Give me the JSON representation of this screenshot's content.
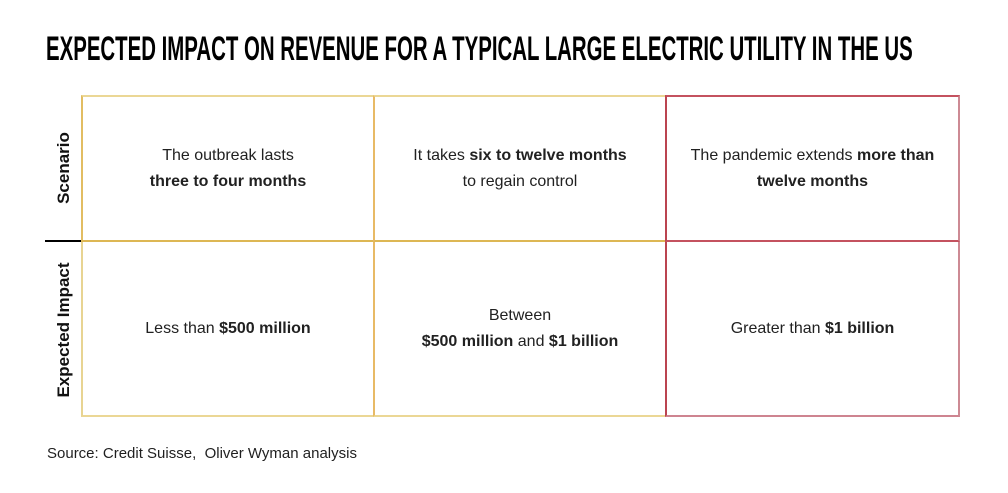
{
  "title": "EXPECTED IMPACT ON REVENUE FOR A TYPICAL LARGE ELECTRIC UTILITY IN THE US",
  "row_labels": {
    "scenario": "Scenario",
    "expected_impact": "Expected Impact"
  },
  "table": {
    "scenario_row": {
      "cell1": {
        "line1": "The outbreak lasts",
        "line2_bold": "three to four months"
      },
      "cell2": {
        "pre": "It takes ",
        "bold": "six to twelve months",
        "line2": "to regain control"
      },
      "cell3": {
        "pre": "The pandemic extends ",
        "bold1": "more than",
        "bold2": "twelve months"
      }
    },
    "impact_row": {
      "cell1": {
        "pre": "Less than ",
        "bold": "$500 million"
      },
      "cell2": {
        "line1": "Between",
        "bold1": "$500 million",
        "mid": " and ",
        "bold2": "$1 billion"
      },
      "cell3": {
        "pre": "Greater than ",
        "bold": "$1 billion"
      }
    }
  },
  "source": "Source: Credit Suisse,  Oliver Wyman analysis",
  "colors": {
    "gold_border": "#E2BD62",
    "red_border": "#C4525F",
    "divider_line": "#000000",
    "text": "#212121",
    "background": "#FFFFFF"
  }
}
